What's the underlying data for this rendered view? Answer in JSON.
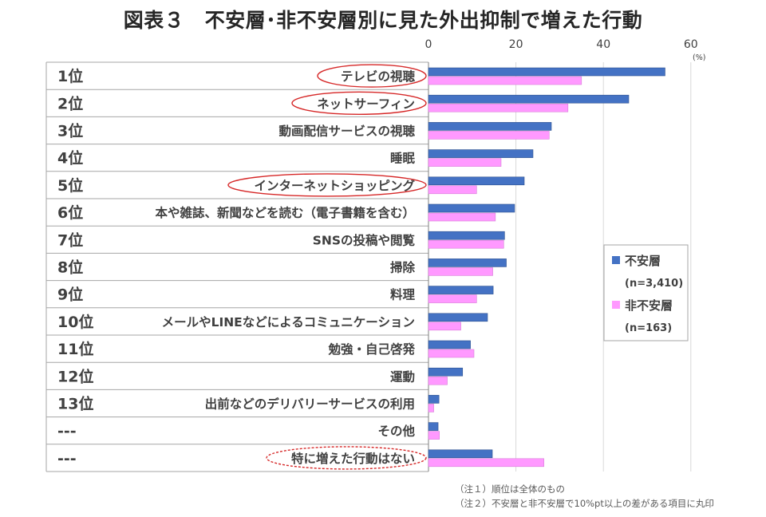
{
  "title": "図表３　不安層･非不安層別に見た外出抑制で増えた行動",
  "chart_data": {
    "type": "bar",
    "orientation": "horizontal",
    "title": "図表３　不安層･非不安層別に見た外出抑制で増えた行動",
    "x_axis": {
      "ticks": [
        "0",
        "20",
        "40",
        "60"
      ],
      "range": [
        0,
        60
      ],
      "unit": "(%)",
      "position": "top"
    },
    "ranks": [
      "1位",
      "2位",
      "3位",
      "4位",
      "5位",
      "6位",
      "7位",
      "8位",
      "9位",
      "10位",
      "11位",
      "12位",
      "13位",
      "---",
      "---"
    ],
    "categories": [
      "テレビの視聴",
      "ネットサーフィン",
      "動画配信サービスの視聴",
      "睡眠",
      "インターネットショッピング",
      "本や雑誌、新聞などを読む（電子書籍を含む）",
      "SNSの投稿や閲覧",
      "掃除",
      "料理",
      "メールやLINEなどによるコミュニケーション",
      "勉強・自己啓発",
      "運動",
      "出前などのデリバリーサービスの利用",
      "その他",
      "特に増えた行動はない"
    ],
    "circled": [
      true,
      true,
      false,
      false,
      true,
      false,
      false,
      false,
      false,
      false,
      false,
      false,
      false,
      false,
      "dashed"
    ],
    "series": [
      {
        "name": "不安層",
        "n": "(n=3,410)",
        "color": "#4472C4",
        "values": [
          54.1,
          45.8,
          28.1,
          23.9,
          21.9,
          19.7,
          17.4,
          17.8,
          14.8,
          13.5,
          9.6,
          7.8,
          2.4,
          2.2,
          14.6
        ]
      },
      {
        "name": "非不安層",
        "n": "(n=163)",
        "color": "#FF99FF",
        "values": [
          35.0,
          31.9,
          27.6,
          16.6,
          11.0,
          15.3,
          17.2,
          14.7,
          11.0,
          7.4,
          10.4,
          4.3,
          1.2,
          2.5,
          26.4
        ]
      }
    ],
    "legend": {
      "position": "right"
    },
    "grid": true
  },
  "footnotes": [
    "（注１）順位は全体のもの",
    "（注２）不安層と非不安層で10%pt以上の差がある項目に丸印"
  ]
}
